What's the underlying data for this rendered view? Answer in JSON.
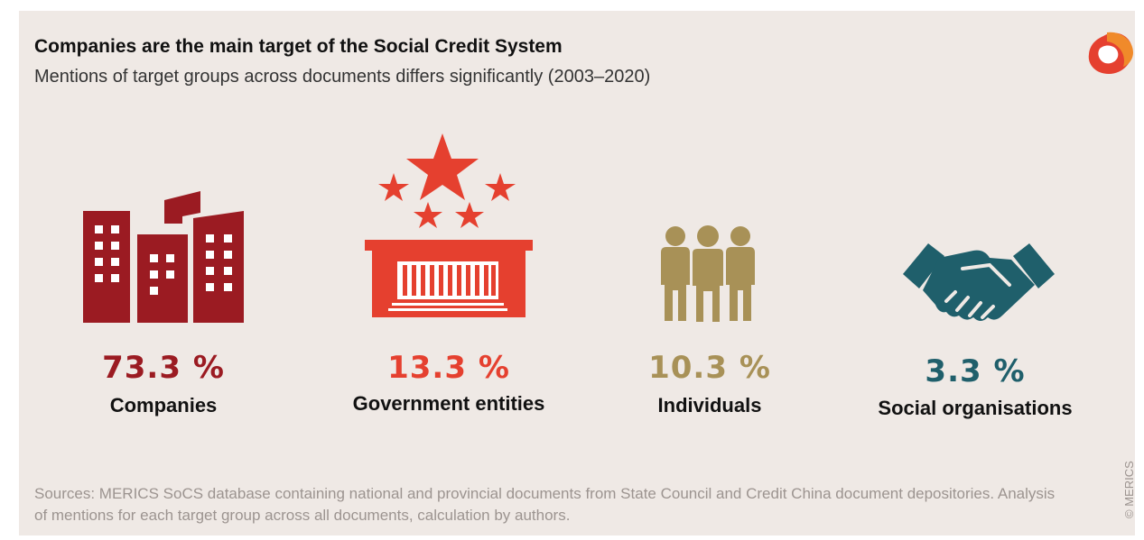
{
  "header": {
    "title": "Companies are the main target of the Social Credit System",
    "subtitle": "Mentions of target groups across documents differs significantly (2003–2020)"
  },
  "chart_data": {
    "type": "pictograph",
    "categories": [
      "Companies",
      "Government entities",
      "Individuals",
      "Social organisations"
    ],
    "values": [
      73.3,
      13.3,
      10.3,
      3.3
    ],
    "value_labels": [
      "73.3 %",
      "13.3 %",
      "10.3 %",
      "3.3 %"
    ],
    "colors": [
      "#9b1b22",
      "#e5402f",
      "#a89157",
      "#1f5f6b"
    ],
    "icons": [
      "buildings-icon",
      "government-building-stars-icon",
      "people-group-icon",
      "handshake-icon"
    ],
    "unit": "%"
  },
  "footer": {
    "sources": "Sources: MERICS SoCS database containing national and provincial documents from State Council and Credit China document depositories. Analysis of mentions for each target group across all documents, calculation by authors.",
    "credit": "© MERICS"
  },
  "logo": {
    "icon": "merics-logo-icon",
    "colors": [
      "#e5402f",
      "#f08a2a"
    ]
  }
}
